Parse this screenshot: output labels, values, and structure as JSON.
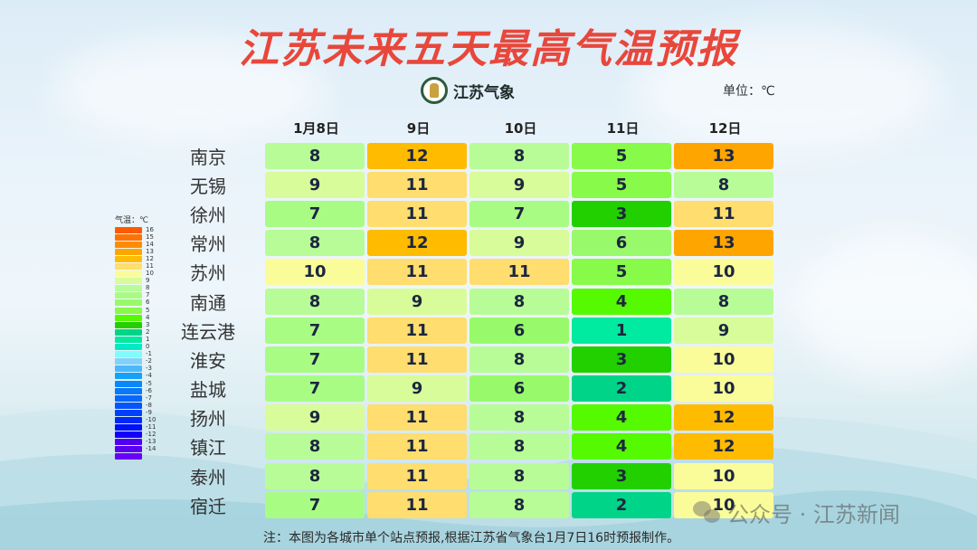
{
  "header": {
    "title": "江苏未来五天最高气温预报",
    "logo_text": "江苏气象",
    "unit_label": "单位：℃"
  },
  "legend": {
    "title": "气温：℃",
    "items": [
      {
        "label": "16",
        "color": "#ff5a00"
      },
      {
        "label": "15",
        "color": "#ff7200"
      },
      {
        "label": "14",
        "color": "#ff8c00"
      },
      {
        "label": "13",
        "color": "#ffa500"
      },
      {
        "label": "12",
        "color": "#ffbb00"
      },
      {
        "label": "11",
        "color": "#ffdd6e"
      },
      {
        "label": "10",
        "color": "#fafc99"
      },
      {
        "label": "9",
        "color": "#d8fc9a"
      },
      {
        "label": "8",
        "color": "#b8fc98"
      },
      {
        "label": "7",
        "color": "#a8fc84"
      },
      {
        "label": "6",
        "color": "#98fa6a"
      },
      {
        "label": "5",
        "color": "#88fa4a"
      },
      {
        "label": "4",
        "color": "#55fa00"
      },
      {
        "label": "3",
        "color": "#22d000"
      },
      {
        "label": "2",
        "color": "#00d488"
      },
      {
        "label": "1",
        "color": "#00eaa0"
      },
      {
        "label": "0",
        "color": "#00eac8"
      },
      {
        "label": "-1",
        "color": "#80fcfc"
      },
      {
        "label": "-2",
        "color": "#80d2fc"
      },
      {
        "label": "-3",
        "color": "#4cb8fc"
      },
      {
        "label": "-4",
        "color": "#12a2fc"
      },
      {
        "label": "-5",
        "color": "#0888fc"
      },
      {
        "label": "-6",
        "color": "#0878fc"
      },
      {
        "label": "-7",
        "color": "#0868fc"
      },
      {
        "label": "-8",
        "color": "#0456fc"
      },
      {
        "label": "-9",
        "color": "#0040fc"
      },
      {
        "label": "-10",
        "color": "#0028f8"
      },
      {
        "label": "-11",
        "color": "#0010f8"
      },
      {
        "label": "-12",
        "color": "#1400f8"
      },
      {
        "label": "-13",
        "color": "#5000f0"
      },
      {
        "label": "-14",
        "color": "#5a00f0"
      },
      {
        "label": "",
        "color": "#6a00f8"
      }
    ]
  },
  "chart_data": {
    "type": "table",
    "title": "江苏未来五天最高气温预报",
    "unit": "℃",
    "columns": [
      "1月8日",
      "9日",
      "10日",
      "11日",
      "12日"
    ],
    "rows": [
      {
        "city": "南京",
        "values": [
          8,
          12,
          8,
          5,
          13
        ]
      },
      {
        "city": "无锡",
        "values": [
          9,
          11,
          9,
          5,
          8
        ]
      },
      {
        "city": "徐州",
        "values": [
          7,
          11,
          7,
          3,
          11
        ]
      },
      {
        "city": "常州",
        "values": [
          8,
          12,
          9,
          6,
          13
        ]
      },
      {
        "city": "苏州",
        "values": [
          10,
          11,
          11,
          5,
          10
        ]
      },
      {
        "city": "南通",
        "values": [
          8,
          9,
          8,
          4,
          8
        ]
      },
      {
        "city": "连云港",
        "values": [
          7,
          11,
          6,
          1,
          9
        ]
      },
      {
        "city": "淮安",
        "values": [
          7,
          11,
          8,
          3,
          10
        ]
      },
      {
        "city": "盐城",
        "values": [
          7,
          9,
          6,
          2,
          10
        ]
      },
      {
        "city": "扬州",
        "values": [
          9,
          11,
          8,
          4,
          12
        ]
      },
      {
        "city": "镇江",
        "values": [
          8,
          11,
          8,
          4,
          12
        ]
      },
      {
        "city": "泰州",
        "values": [
          8,
          11,
          8,
          3,
          10
        ]
      },
      {
        "city": "宿迁",
        "values": [
          7,
          11,
          8,
          2,
          10
        ]
      }
    ]
  },
  "cell_colors": {
    "1": "#00eaa0",
    "2": "#00d488",
    "3": "#22d000",
    "4": "#55fa00",
    "5": "#88fa4a",
    "6": "#98fa6a",
    "7": "#a8fc84",
    "8": "#b8fc98",
    "9": "#d8fc9a",
    "10": "#fafc99",
    "11": "#ffdd6e",
    "12": "#ffbb00",
    "13": "#ffa500"
  },
  "footer": {
    "note": "注：本图为各城市单个站点预报,根据江苏省气象台1月7日16时预报制作。",
    "watermark": "公众号 · 江苏新闻"
  }
}
